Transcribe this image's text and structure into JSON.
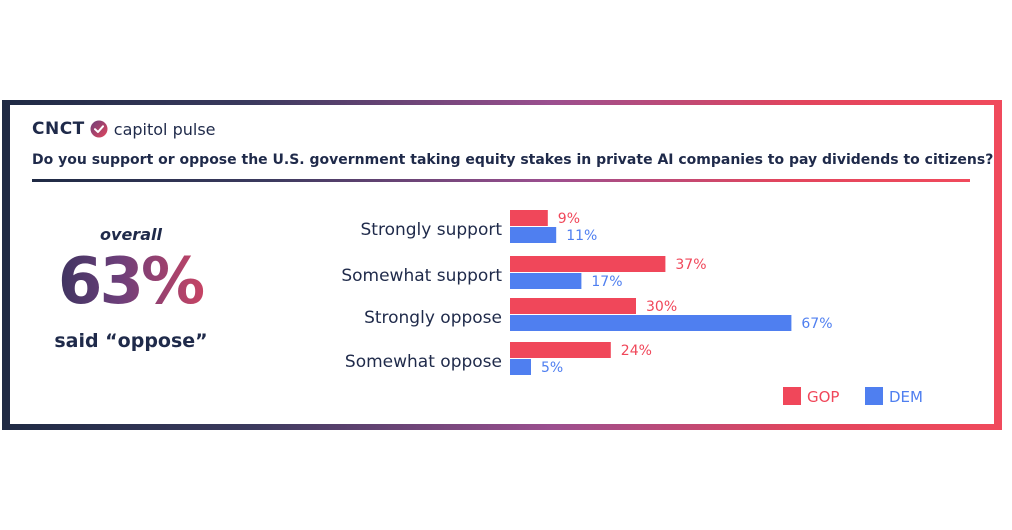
{
  "brand": {
    "name": "CNCT",
    "tagline": "capitol pulse"
  },
  "question": "Do you support or oppose the U.S. government taking equity stakes in private AI companies to pay dividends to citizens?",
  "summary": {
    "label": "overall",
    "value": "63%",
    "caption": "said “oppose”"
  },
  "colors": {
    "gop": "#f0475a",
    "dem": "#4f7ff0",
    "text": "#1f2a4a"
  },
  "chart_data": {
    "type": "bar",
    "orientation": "horizontal",
    "categories": [
      "Strongly support",
      "Somewhat support",
      "Strongly oppose",
      "Somewhat oppose"
    ],
    "series": [
      {
        "name": "GOP",
        "values": [
          9,
          37,
          30,
          24
        ]
      },
      {
        "name": "DEM",
        "values": [
          11,
          17,
          67,
          5
        ]
      }
    ],
    "value_labels": {
      "GOP": [
        "9%",
        "37%",
        "30%",
        "24%"
      ],
      "DEM": [
        "11%",
        "17%",
        "67%",
        "5%"
      ]
    },
    "legend_position": "bottom-right"
  }
}
